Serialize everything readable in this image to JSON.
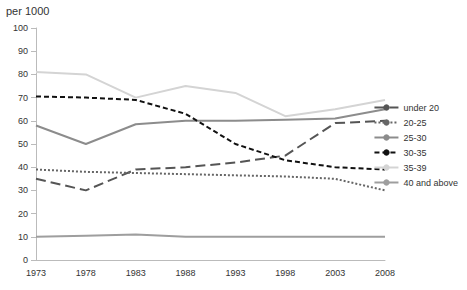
{
  "chart_data": {
    "type": "line",
    "y_label": "per 1000",
    "categories": [
      "1973",
      "1978",
      "1983",
      "1988",
      "1993",
      "1998",
      "2003",
      "2008"
    ],
    "series": [
      {
        "name": "under 20",
        "color": "#555555",
        "line_style": "long_dash",
        "values": [
          35,
          30,
          39,
          40,
          42,
          45,
          59,
          60
        ]
      },
      {
        "name": "20-25",
        "color": "#666666",
        "line_style": "dotted",
        "values": [
          39,
          38,
          37.5,
          37,
          36.5,
          36,
          35,
          30
        ]
      },
      {
        "name": "25-30",
        "color": "#8c8c8c",
        "line_style": "solid",
        "values": [
          58,
          50,
          58.5,
          60,
          60,
          60.5,
          61,
          65
        ]
      },
      {
        "name": "30-35",
        "color": "#111111",
        "line_style": "dashed",
        "values": [
          70.5,
          70,
          69,
          63,
          50,
          43,
          40,
          39
        ]
      },
      {
        "name": "35-39",
        "color": "#d4d4d4",
        "line_style": "solid",
        "values": [
          81,
          80,
          70,
          75,
          72,
          62,
          65,
          69
        ]
      },
      {
        "name": "40 and above",
        "color": "#9e9e9e",
        "line_style": "solid",
        "values": [
          10,
          10.5,
          11,
          10,
          10,
          10,
          10,
          10
        ]
      }
    ],
    "ylim": [
      0,
      100
    ],
    "yticks": [
      0,
      10,
      20,
      30,
      40,
      50,
      60,
      70,
      80,
      90,
      100
    ],
    "grid": false,
    "legend": "right",
    "marker": "none"
  }
}
